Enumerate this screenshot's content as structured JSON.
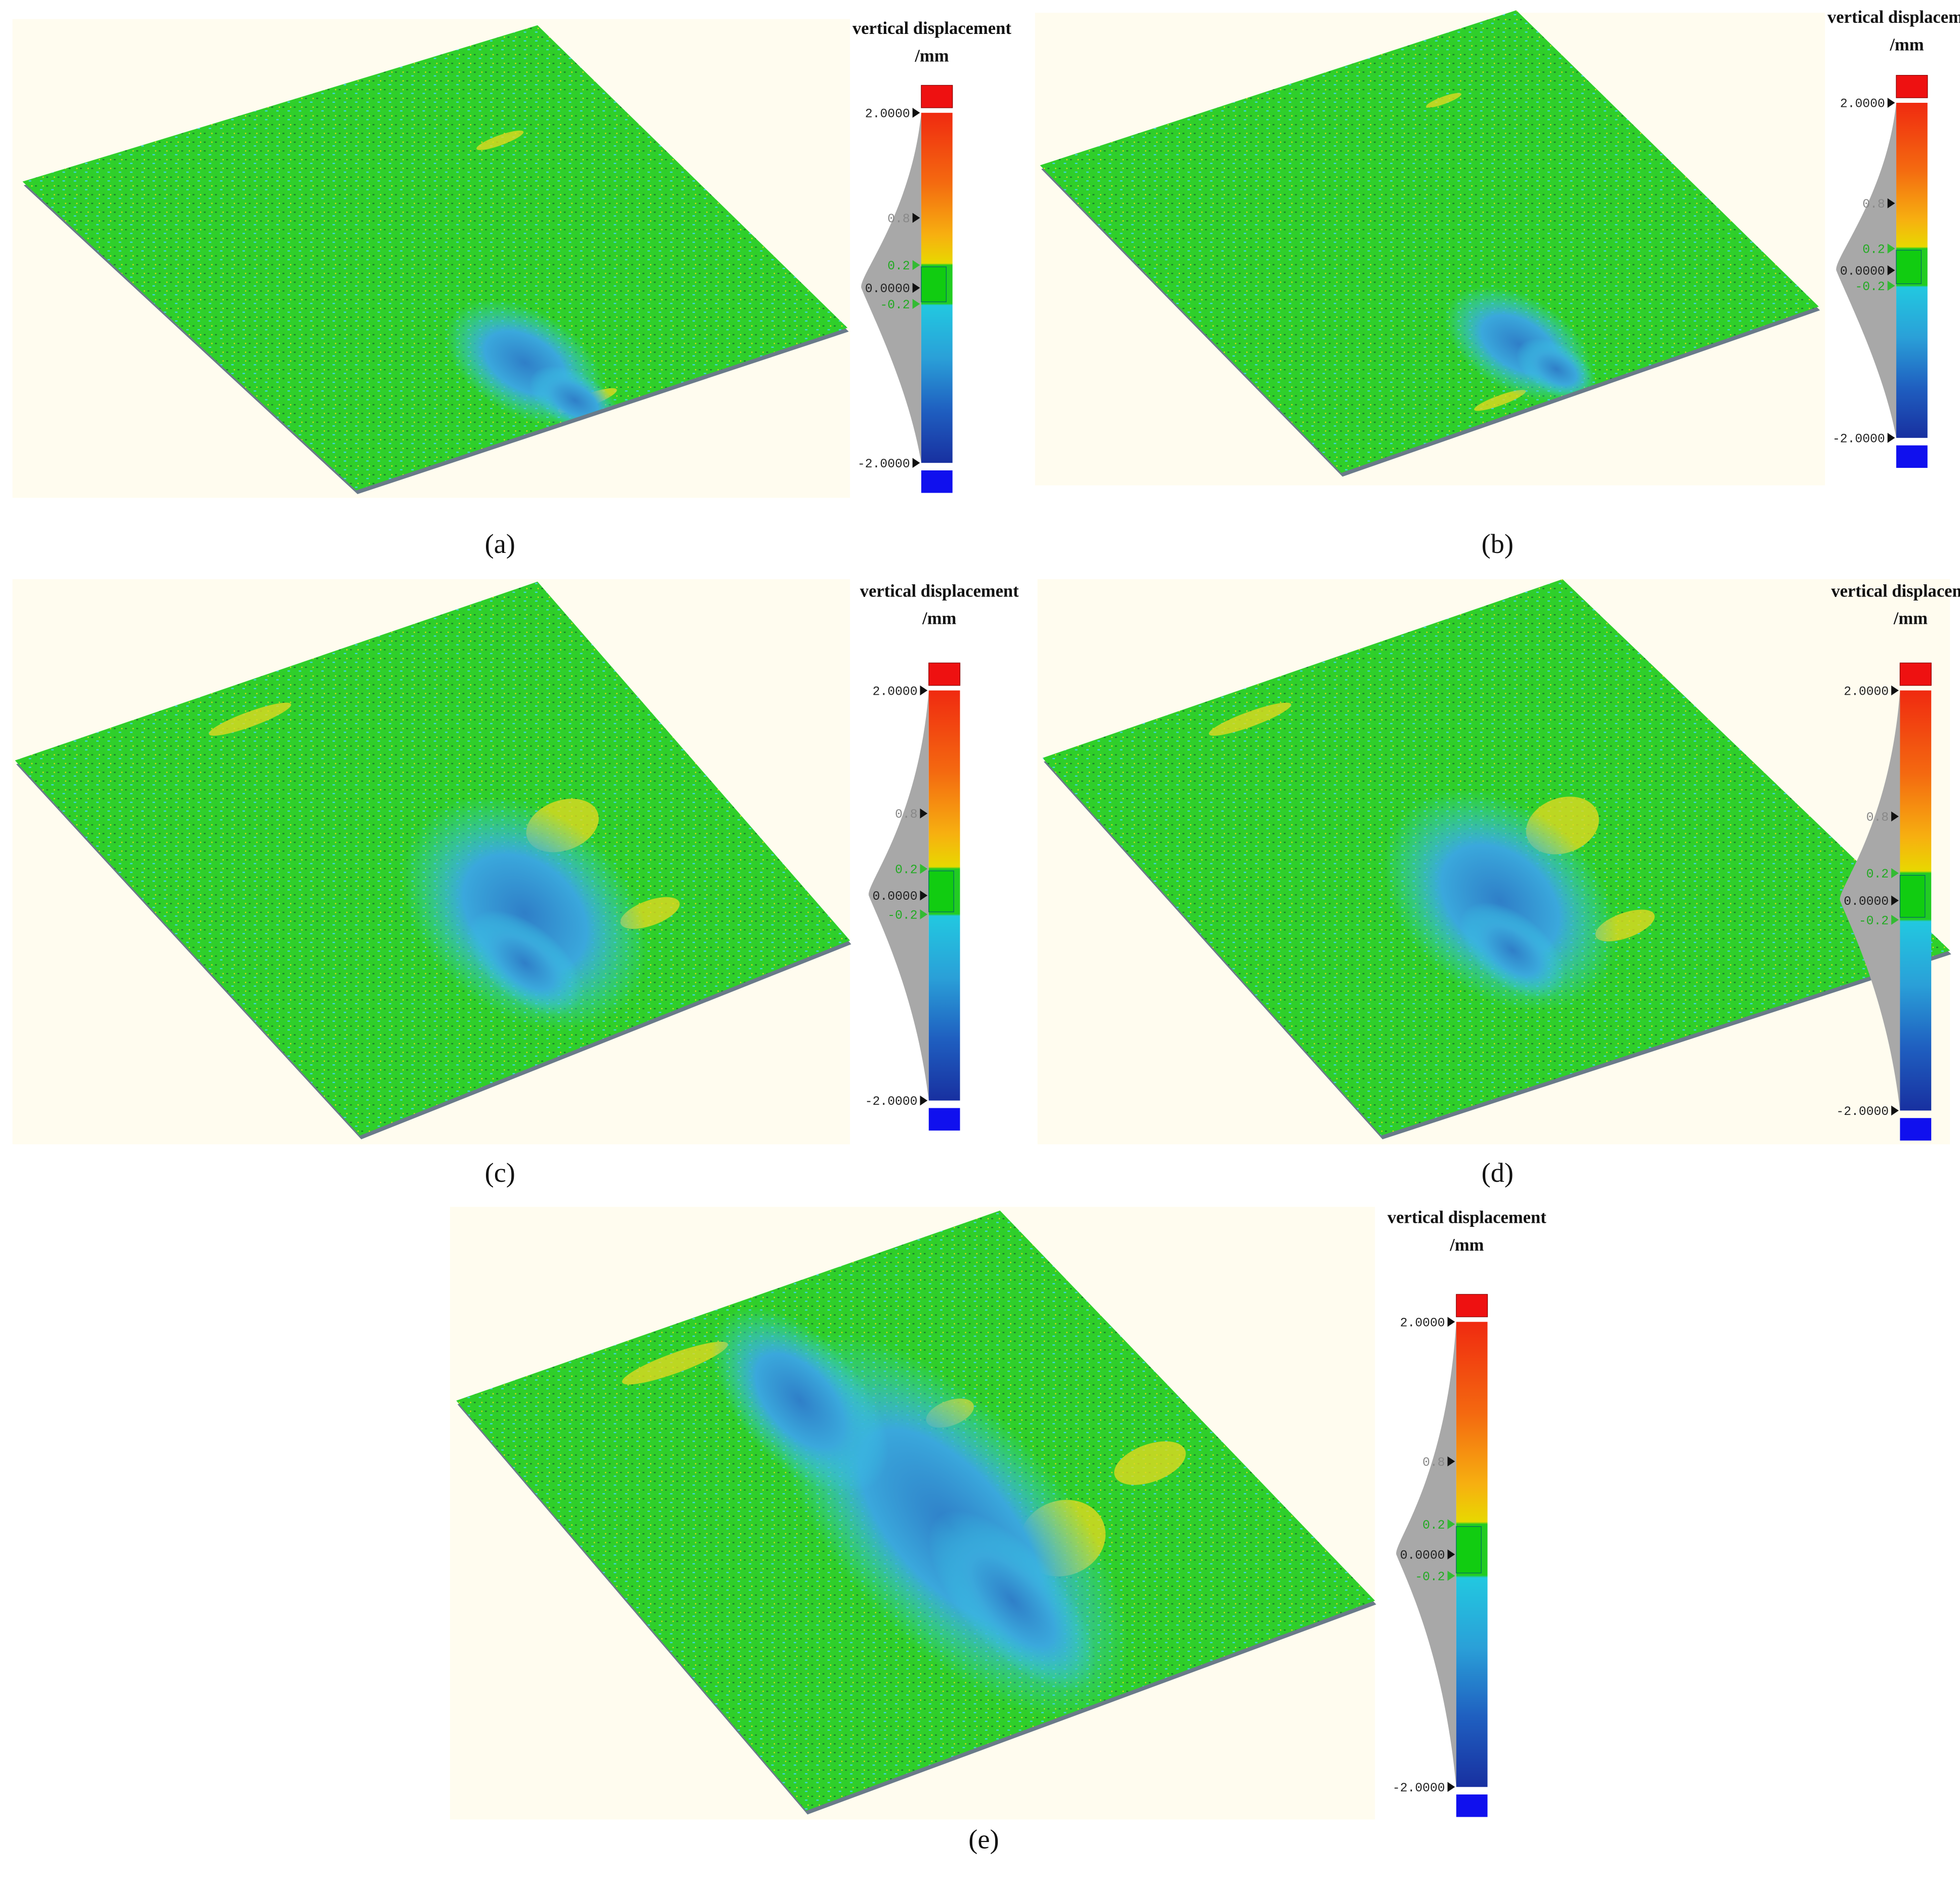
{
  "panels": [
    {
      "label": "(a)",
      "colorbar": {
        "title": "vertical displacement",
        "unit": "/mm",
        "ticks": [
          "2.0000",
          "0.8",
          "0.2",
          "0.0000",
          "-0.2",
          "-2.0000"
        ]
      }
    },
    {
      "label": "(b)",
      "colorbar": {
        "title": "vertical displacement",
        "unit": "/mm",
        "ticks": [
          "2.0000",
          "0.8",
          "0.2",
          "0.0000",
          "-0.2",
          "-2.0000"
        ]
      }
    },
    {
      "label": "(c)",
      "colorbar": {
        "title": "vertical displacement",
        "unit": "/mm",
        "ticks": [
          "2.0000",
          "0.8",
          "0.2",
          "0.0000",
          "-0.2",
          "-2.0000"
        ]
      }
    },
    {
      "label": "(d)",
      "colorbar": {
        "title": "vertical displacement",
        "unit": "/mm",
        "ticks": [
          "2.0000",
          "0.8",
          "0.2",
          "0.0000",
          "-0.2",
          "-2.0000"
        ]
      }
    },
    {
      "label": "(e)",
      "colorbar": {
        "title": "vertical displacement",
        "unit": "/mm",
        "ticks": [
          "2.0000",
          "0.8",
          "0.2",
          "0.0000",
          "-0.2",
          "-2.0000"
        ]
      }
    }
  ]
}
